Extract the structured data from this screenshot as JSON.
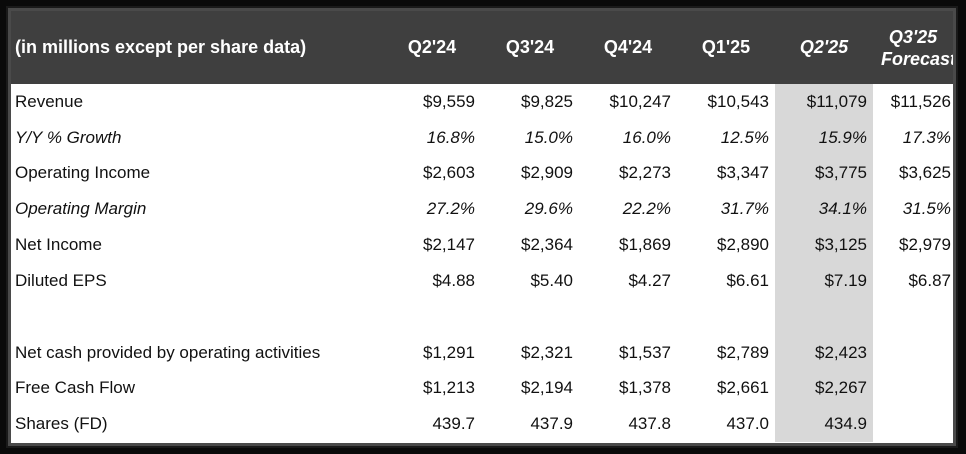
{
  "header": {
    "label": "(in millions except per share data)",
    "columns": [
      "Q2'24",
      "Q3'24",
      "Q4'24",
      "Q1'25",
      "Q2'25"
    ],
    "forecast_line1": "Q3'25",
    "forecast_line2": "Forecast"
  },
  "rows": [
    {
      "label": "Revenue",
      "values": [
        "$9,559",
        "$9,825",
        "$10,247",
        "$10,543",
        "$11,079",
        "$11,526"
      ]
    },
    {
      "label": "Y/Y % Growth",
      "values": [
        "16.8%",
        "15.0%",
        "16.0%",
        "12.5%",
        "15.9%",
        "17.3%"
      ]
    },
    {
      "label": "Operating Income",
      "values": [
        "$2,603",
        "$2,909",
        "$2,273",
        "$3,347",
        "$3,775",
        "$3,625"
      ]
    },
    {
      "label": "Operating Margin",
      "values": [
        "27.2%",
        "29.6%",
        "22.2%",
        "31.7%",
        "34.1%",
        "31.5%"
      ]
    },
    {
      "label": "Net Income",
      "values": [
        "$2,147",
        "$2,364",
        "$1,869",
        "$2,890",
        "$3,125",
        "$2,979"
      ]
    },
    {
      "label": "Diluted EPS",
      "values": [
        "$4.88",
        "$5.40",
        "$4.27",
        "$6.61",
        "$7.19",
        "$6.87"
      ]
    },
    {
      "label": "Net cash provided by operating activities",
      "values": [
        "$1,291",
        "$2,321",
        "$1,537",
        "$2,789",
        "$2,423",
        ""
      ]
    },
    {
      "label": "Free Cash Flow",
      "values": [
        "$1,213",
        "$2,194",
        "$1,378",
        "$2,661",
        "$2,267",
        ""
      ]
    },
    {
      "label": "Shares (FD)",
      "values": [
        "439.7",
        "437.9",
        "437.8",
        "437.0",
        "434.9",
        ""
      ]
    }
  ],
  "colors": {
    "header_bg": "#3f3f3f",
    "highlight_column": "#d8d8d8"
  }
}
